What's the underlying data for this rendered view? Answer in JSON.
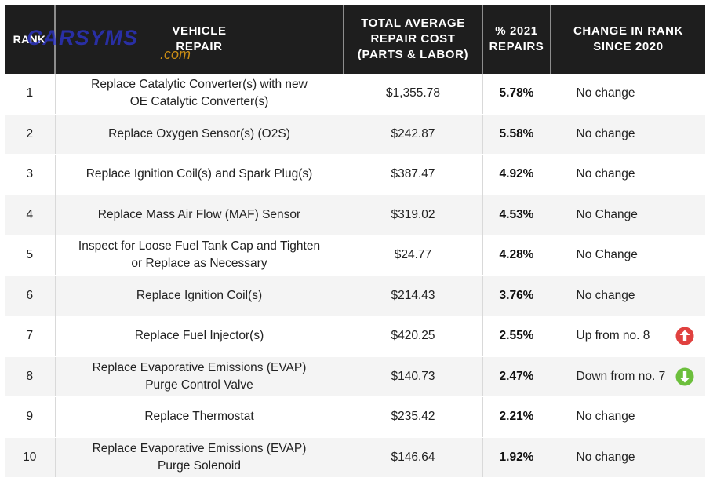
{
  "table": {
    "headers": {
      "rank": "RANK",
      "repair_line1": "VEHICLE",
      "repair_line2": "REPAIR",
      "cost_line1": "TOTAL AVERAGE",
      "cost_line2": "REPAIR COST",
      "cost_line3": "(PARTS & LABOR)",
      "pct_line1": "% 2021",
      "pct_line2": "REPAIRS",
      "change_line1": "CHANGE IN RANK",
      "change_line2": "SINCE 2020"
    },
    "rows": [
      {
        "rank": "1",
        "repair_l1": "Replace Catalytic Converter(s) with new",
        "repair_l2": "OE Catalytic Converter(s)",
        "cost": "$1,355.78",
        "pct": "5.78%",
        "change": "No change"
      },
      {
        "rank": "2",
        "repair_l1": "Replace Oxygen Sensor(s) (O2S)",
        "repair_l2": "",
        "cost": "$242.87",
        "pct": "5.58%",
        "change": "No change"
      },
      {
        "rank": "3",
        "repair_l1": "Replace Ignition Coil(s) and Spark Plug(s)",
        "repair_l2": "",
        "cost": "$387.47",
        "pct": "4.92%",
        "change": "No change"
      },
      {
        "rank": "4",
        "repair_l1": "Replace Mass Air Flow (MAF) Sensor",
        "repair_l2": "",
        "cost": "$319.02",
        "pct": "4.53%",
        "change": "No Change"
      },
      {
        "rank": "5",
        "repair_l1": "Inspect for Loose Fuel Tank Cap and Tighten",
        "repair_l2": "or Replace as Necessary",
        "cost": "$24.77",
        "pct": "4.28%",
        "change": "No Change"
      },
      {
        "rank": "6",
        "repair_l1": "Replace Ignition Coil(s)",
        "repair_l2": "",
        "cost": "$214.43",
        "pct": "3.76%",
        "change": "No change"
      },
      {
        "rank": "7",
        "repair_l1": "Replace Fuel Injector(s)",
        "repair_l2": "",
        "cost": "$420.25",
        "pct": "2.55%",
        "change": "Up from no. 8",
        "icon": "arrow-up-icon",
        "icon_color": "#e0413f"
      },
      {
        "rank": "8",
        "repair_l1": "Replace Evaporative Emissions (EVAP)",
        "repair_l2": "Purge Control Valve",
        "cost": "$140.73",
        "pct": "2.47%",
        "change": "Down from no. 7",
        "icon": "arrow-down-icon",
        "icon_color": "#6cbf3c"
      },
      {
        "rank": "9",
        "repair_l1": "Replace Thermostat",
        "repair_l2": "",
        "cost": "$235.42",
        "pct": "2.21%",
        "change": "No change"
      },
      {
        "rank": "10",
        "repair_l1": "Replace Evaporative Emissions (EVAP)",
        "repair_l2": "Purge Solenoid",
        "cost": "$146.64",
        "pct": "1.92%",
        "change": "No change"
      }
    ]
  },
  "watermark": {
    "main": "CARSYMS",
    "sub": ".com"
  },
  "colors": {
    "header_bg": "#1e1e1e",
    "row_alt_bg": "#f4f4f4",
    "up_arrow": "#e0413f",
    "down_arrow": "#6cbf3c"
  }
}
